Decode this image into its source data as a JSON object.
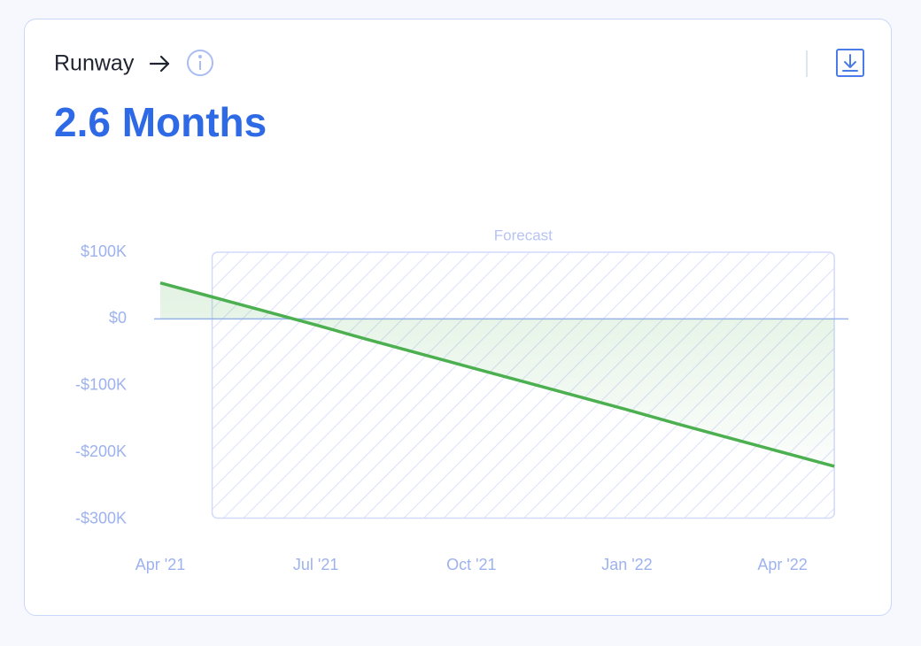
{
  "card": {
    "title": "Runway",
    "metric": "2.6 Months"
  },
  "chart_data": {
    "type": "line",
    "categories": [
      "Apr '21",
      null,
      null,
      "Jul '21",
      null,
      null,
      "Oct '21",
      null,
      null,
      "Jan '22",
      null,
      null,
      "Apr '22",
      null
    ],
    "series": [
      {
        "color": "#4caf50",
        "values": [
          54000,
          33000,
          12000,
          -9000,
          -31000,
          -52000,
          -73000,
          -94000,
          -115000,
          -136000,
          -158000,
          -179000,
          -200000,
          -221000
        ]
      }
    ],
    "ylim": [
      -300000,
      100000
    ],
    "yticks": [
      {
        "value": 100000,
        "label": "$100K"
      },
      {
        "value": 0,
        "label": "$0"
      },
      {
        "value": -100000,
        "label": "-$100K"
      },
      {
        "value": -200000,
        "label": "-$200K"
      },
      {
        "value": -300000,
        "label": "-$300K"
      }
    ],
    "annotations": [
      {
        "text": "Forecast"
      }
    ]
  }
}
